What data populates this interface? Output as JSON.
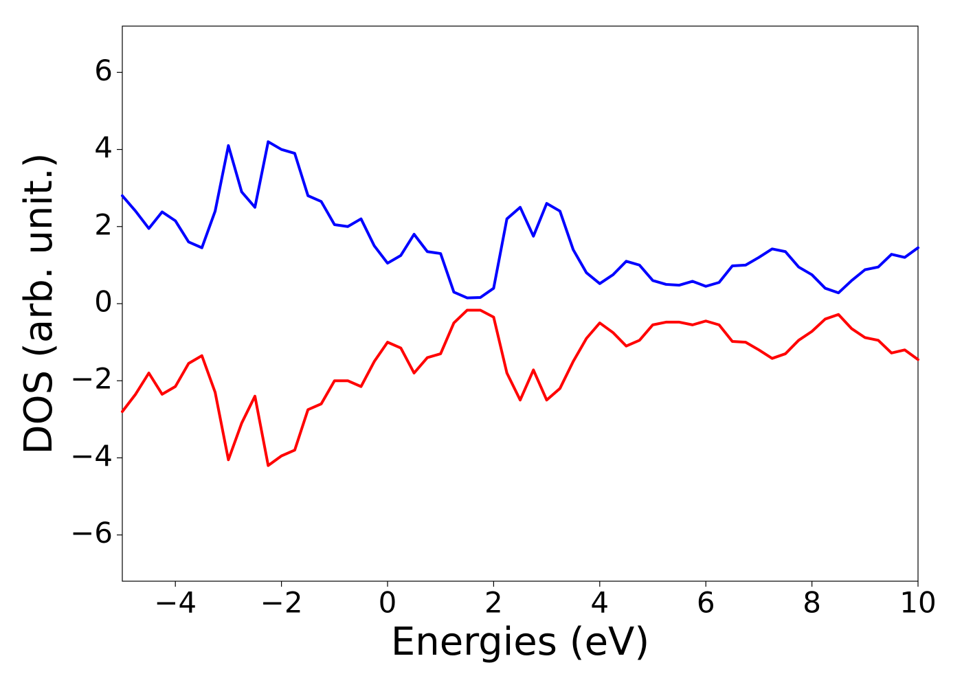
{
  "chart_data": {
    "type": "line",
    "x_label": "Energies (eV)",
    "y_label": "DOS (arb. unit.)",
    "x": [
      -5,
      -4.75,
      -4.5,
      -4.25,
      -4,
      -3.75,
      -3.5,
      -3.25,
      -3,
      -2.75,
      -2.5,
      -2.25,
      -2,
      -1.75,
      -1.5,
      -1.25,
      -1,
      -0.75,
      -0.5,
      -0.25,
      0,
      0.25,
      0.5,
      0.75,
      1,
      1.25,
      1.5,
      1.75,
      2,
      2.25,
      2.5,
      2.75,
      3,
      3.25,
      3.5,
      3.75,
      4,
      4.25,
      4.5,
      4.75,
      5,
      5.25,
      5.5,
      5.75,
      6,
      6.25,
      6.5,
      6.75,
      7,
      7.25,
      7.5,
      7.75,
      8,
      8.25,
      8.5,
      8.75,
      9,
      9.25,
      9.5,
      9.75,
      10
    ],
    "series": [
      {
        "color": "#0000ff",
        "values": [
          2.8,
          2.4,
          1.95,
          2.38,
          2.15,
          1.6,
          1.45,
          2.4,
          4.1,
          2.9,
          2.5,
          4.2,
          4.0,
          3.9,
          2.8,
          2.65,
          2.05,
          2.0,
          2.2,
          1.5,
          1.05,
          1.25,
          1.8,
          1.35,
          1.3,
          0.3,
          0.15,
          0.16,
          0.4,
          2.2,
          2.5,
          1.75,
          2.6,
          2.4,
          1.4,
          0.8,
          0.52,
          0.75,
          1.1,
          1.0,
          0.6,
          0.5,
          0.48,
          0.58,
          0.45,
          0.55,
          0.98,
          1.0,
          1.2,
          1.42,
          1.35,
          0.95,
          0.75,
          0.4,
          0.28,
          0.6,
          0.88,
          0.95,
          1.28,
          1.2,
          1.45
        ]
      },
      {
        "color": "#ff0000",
        "values": [
          -2.8,
          -2.35,
          -1.8,
          -2.35,
          -2.15,
          -1.55,
          -1.35,
          -2.3,
          -4.05,
          -3.1,
          -2.4,
          -4.2,
          -3.95,
          -3.8,
          -2.75,
          -2.6,
          -2.0,
          -2.0,
          -2.15,
          -1.5,
          -1.0,
          -1.15,
          -1.8,
          -1.4,
          -1.3,
          -0.5,
          -0.17,
          -0.17,
          -0.35,
          -1.8,
          -2.5,
          -1.72,
          -2.5,
          -2.2,
          -1.5,
          -0.9,
          -0.5,
          -0.75,
          -1.1,
          -0.95,
          -0.55,
          -0.48,
          -0.48,
          -0.55,
          -0.45,
          -0.55,
          -0.98,
          -1.0,
          -1.2,
          -1.42,
          -1.3,
          -0.95,
          -0.72,
          -0.4,
          -0.28,
          -0.65,
          -0.88,
          -0.95,
          -1.28,
          -1.2,
          -1.45
        ]
      }
    ],
    "xlim": [
      -5,
      10
    ],
    "ylim": [
      -7.2,
      7.2
    ],
    "xticks": [
      {
        "value": -4,
        "label": "−4"
      },
      {
        "value": -2,
        "label": "−2"
      },
      0,
      2,
      4,
      6,
      8,
      10
    ],
    "yticks": [
      {
        "value": -6,
        "label": "−6"
      },
      {
        "value": -4,
        "label": "−4"
      },
      {
        "value": -2,
        "label": "−2"
      },
      0,
      2,
      4,
      6
    ],
    "grid": false
  }
}
